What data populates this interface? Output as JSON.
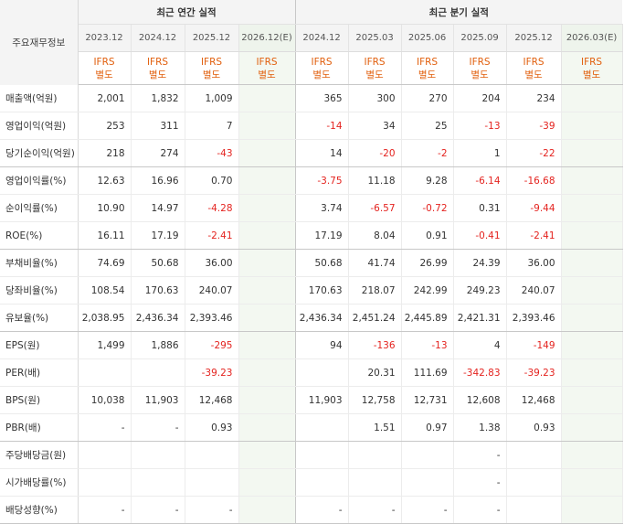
{
  "table": {
    "corner_label": "주요재무정보",
    "annual_group_label": "최근 연간 실적",
    "quarter_group_label": "최근 분기 실적",
    "annual_periods": [
      "2023.12",
      "2024.12",
      "2025.12",
      "2026.12(E)"
    ],
    "quarter_periods": [
      "2024.12",
      "2025.03",
      "2025.06",
      "2025.09",
      "2025.12",
      "2026.03(E)"
    ],
    "basis_line1": "IFRS",
    "basis_line2": "별도",
    "rows": [
      {
        "label": "매출액(억원)",
        "values": [
          "2,001",
          "1,832",
          "1,009",
          "",
          "365",
          "300",
          "270",
          "204",
          "234",
          ""
        ]
      },
      {
        "label": "영업이익(억원)",
        "values": [
          "253",
          "311",
          "7",
          "",
          "-14",
          "34",
          "25",
          "-13",
          "-39",
          ""
        ]
      },
      {
        "label": "당기순이익(억원)",
        "values": [
          "218",
          "274",
          "-43",
          "",
          "14",
          "-20",
          "-2",
          "1",
          "-22",
          ""
        ]
      },
      {
        "label": "영업이익률(%)",
        "values": [
          "12.63",
          "16.96",
          "0.70",
          "",
          "-3.75",
          "11.18",
          "9.28",
          "-6.14",
          "-16.68",
          ""
        ]
      },
      {
        "label": "순이익률(%)",
        "values": [
          "10.90",
          "14.97",
          "-4.28",
          "",
          "3.74",
          "-6.57",
          "-0.72",
          "0.31",
          "-9.44",
          ""
        ]
      },
      {
        "label": "ROE(%)",
        "values": [
          "16.11",
          "17.19",
          "-2.41",
          "",
          "17.19",
          "8.04",
          "0.91",
          "-0.41",
          "-2.41",
          ""
        ]
      },
      {
        "label": "부채비율(%)",
        "values": [
          "74.69",
          "50.68",
          "36.00",
          "",
          "50.68",
          "41.74",
          "26.99",
          "24.39",
          "36.00",
          ""
        ]
      },
      {
        "label": "당좌비율(%)",
        "values": [
          "108.54",
          "170.63",
          "240.07",
          "",
          "170.63",
          "218.07",
          "242.99",
          "249.23",
          "240.07",
          ""
        ]
      },
      {
        "label": "유보율(%)",
        "values": [
          "2,038.95",
          "2,436.34",
          "2,393.46",
          "",
          "2,436.34",
          "2,451.24",
          "2,445.89",
          "2,421.31",
          "2,393.46",
          ""
        ]
      },
      {
        "label": "EPS(원)",
        "values": [
          "1,499",
          "1,886",
          "-295",
          "",
          "94",
          "-136",
          "-13",
          "4",
          "-149",
          ""
        ]
      },
      {
        "label": "PER(배)",
        "values": [
          "",
          "",
          "-39.23",
          "",
          "",
          "20.31",
          "111.69",
          "-342.83",
          "-39.23",
          ""
        ]
      },
      {
        "label": "BPS(원)",
        "values": [
          "10,038",
          "11,903",
          "12,468",
          "",
          "11,903",
          "12,758",
          "12,731",
          "12,608",
          "12,468",
          ""
        ]
      },
      {
        "label": "PBR(배)",
        "values": [
          "-",
          "-",
          "0.93",
          "",
          "",
          "1.51",
          "0.97",
          "1.38",
          "0.93",
          ""
        ]
      },
      {
        "label": "주당배당금(원)",
        "values": [
          "",
          "",
          "",
          "",
          "",
          "",
          "",
          "-",
          "",
          ""
        ]
      },
      {
        "label": "시가배당률(%)",
        "values": [
          "",
          "",
          "",
          "",
          "",
          "",
          "",
          "-",
          "",
          ""
        ]
      },
      {
        "label": "배당성향(%)",
        "values": [
          "-",
          "-",
          "-",
          "",
          "-",
          "-",
          "-",
          "-",
          "",
          ""
        ]
      }
    ]
  },
  "colors": {
    "negative": "#e4231f",
    "basis_text": "#e15f0d",
    "estimate_bg": "#f3f8f1",
    "header_bg": "#f4f4f4"
  }
}
